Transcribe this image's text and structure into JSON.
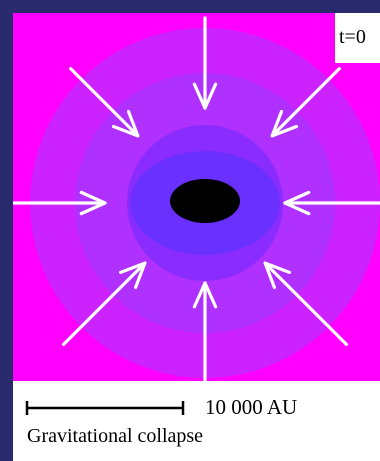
{
  "time_label": "t=0",
  "scale_label": "10 000 AU",
  "caption": "Gravitational collapse",
  "colors": {
    "frame": "#2a2a6e",
    "outer": "#ff00ff",
    "ring1": "#cc33ff",
    "ring2": "#a020ff",
    "ring3": "#8a2bff",
    "inner": "#6a2cff",
    "core": "#000000",
    "arrow": "#ffffff"
  },
  "icons": [
    "inward-arrow-icon",
    "scale-bar-icon"
  ]
}
